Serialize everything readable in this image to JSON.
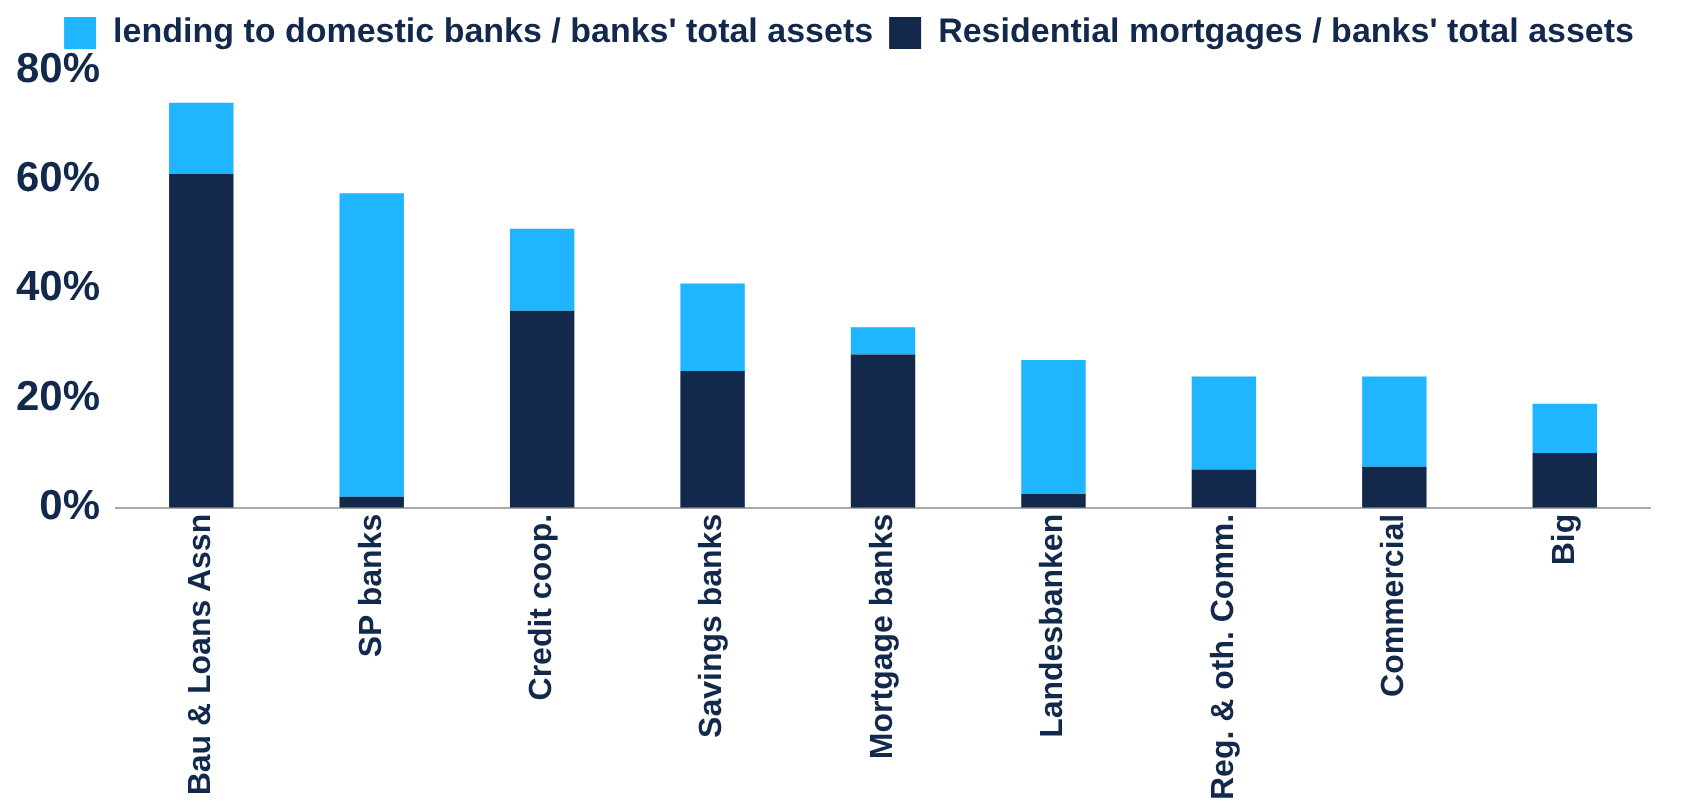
{
  "chart_data": {
    "type": "bar",
    "stacked": true,
    "categories": [
      "Bau & Loans Assn",
      "SP banks",
      "Credit coop.",
      "Savings banks",
      "Mortgage banks",
      "Landesbanken",
      "Reg. & oth. Comm.",
      "Commercial",
      "Big"
    ],
    "series": [
      {
        "name": "Residential mortgages / banks' total assets",
        "color": "#13294b",
        "values": [
          61,
          2,
          36,
          25,
          28,
          2.5,
          7,
          7.5,
          10
        ]
      },
      {
        "name": "lending to domestic banks / banks' total assets",
        "color": "#1fb5ff",
        "values": [
          13,
          55.5,
          15,
          16,
          5,
          24.5,
          17,
          16.5,
          9
        ]
      }
    ],
    "ylim": [
      0,
      80
    ],
    "yticks": [
      {
        "value": 0,
        "label": "0%"
      },
      {
        "value": 20,
        "label": "20%"
      },
      {
        "value": 40,
        "label": "40%"
      },
      {
        "value": 60,
        "label": "60%"
      },
      {
        "value": 80,
        "label": "80%"
      }
    ],
    "grid": false,
    "legend": "top right"
  }
}
